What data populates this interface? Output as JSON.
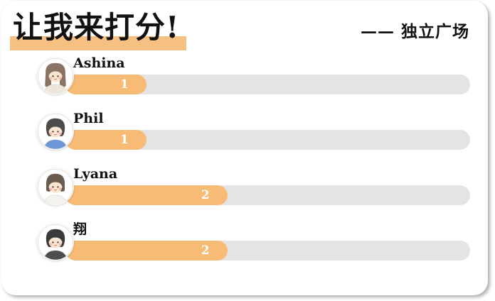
{
  "header": {
    "title": "让我来打分!",
    "subtitle": "—— 独立广场",
    "highlight_color": "#f6c083"
  },
  "chart_data": {
    "type": "bar",
    "orientation": "horizontal",
    "title": "让我来打分!",
    "subtitle": "—— 独立广场",
    "categories": [
      "Ashina",
      "Phil",
      "Lyana",
      "翔"
    ],
    "values": [
      1,
      1,
      2,
      2
    ],
    "value_labels": [
      "1",
      "1",
      "2",
      "2"
    ],
    "xlim": [
      0,
      5
    ],
    "grid": false,
    "legend": false,
    "bar_color": "#f8bb76",
    "track_color": "#e4e4e4",
    "value_label_color": "#ffffff"
  },
  "avatars": [
    {
      "icon": "girl-long-hair-avatar",
      "style": "long",
      "hair": "#8a7265",
      "shirt": "#ece5d9"
    },
    {
      "icon": "boy-curly-hair-avatar",
      "style": "short",
      "hair": "#4d4c4a",
      "shirt": "#6e95d7"
    },
    {
      "icon": "girl-bob-hair-avatar",
      "style": "bob",
      "hair": "#6b5a4e",
      "shirt": "#f4f2ee"
    },
    {
      "icon": "boy-black-hair-avatar",
      "style": "short",
      "hair": "#3a3a3a",
      "shirt": "#4f4d4e"
    }
  ]
}
